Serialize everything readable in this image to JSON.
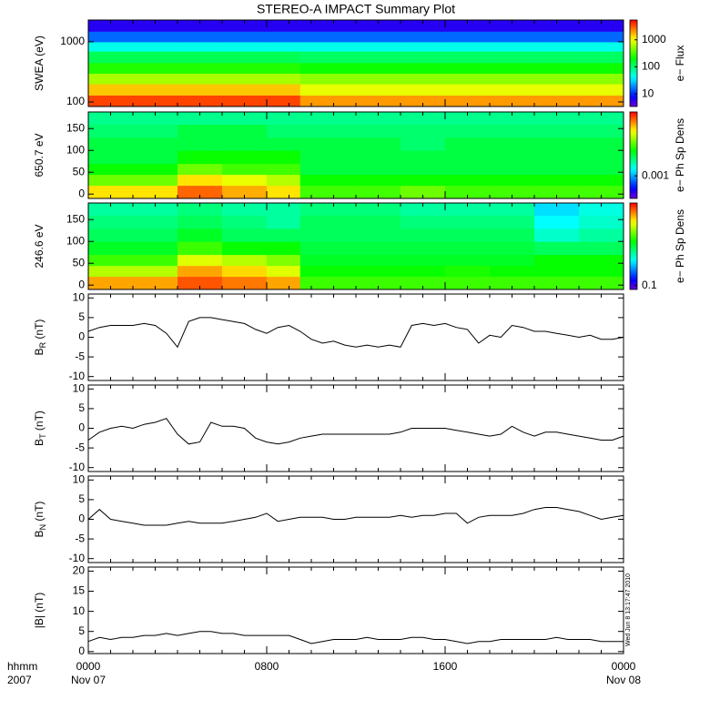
{
  "title": "STEREO-A IMPACT Summary Plot",
  "timestamp": "Wed Jun  8 13:17:47 2010",
  "x_axis": {
    "xlim": [
      0,
      24
    ],
    "xticks": [
      {
        "value": 0,
        "label": "0000"
      },
      {
        "value": 8,
        "label": "0800"
      },
      {
        "value": 16,
        "label": "1600"
      },
      {
        "value": 24,
        "label": "0000"
      }
    ],
    "xminor": [
      1,
      2,
      3,
      4,
      5,
      6,
      7,
      9,
      10,
      11,
      12,
      13,
      14,
      15,
      17,
      18,
      19,
      20,
      21,
      22,
      23
    ],
    "date_labels": [
      {
        "value": 0,
        "label": "Nov 07"
      },
      {
        "value": 24,
        "label": "Nov 08"
      }
    ],
    "unit_labels": [
      "hhmm",
      "2007"
    ]
  },
  "chart_data": [
    {
      "type": "heatmap",
      "ylabel": "SWEA (eV)",
      "ylog": true,
      "ylim": [
        84,
        2300
      ],
      "yticks": [
        100,
        1000
      ],
      "x_edges": [
        0,
        2,
        4,
        6,
        8,
        9.5,
        12,
        14,
        16,
        18,
        20,
        22,
        24
      ],
      "y_edges": [
        84,
        130,
        200,
        300,
        450,
        700,
        1000,
        1500,
        2300
      ],
      "z": [
        [
          3500,
          3500,
          3500,
          3500,
          3500,
          2000,
          2000,
          2000,
          2000,
          2000,
          2000,
          2000
        ],
        [
          1500,
          1500,
          1500,
          1500,
          1500,
          900,
          900,
          900,
          900,
          900,
          900,
          900
        ],
        [
          600,
          600,
          600,
          600,
          600,
          500,
          500,
          500,
          500,
          500,
          500,
          500
        ],
        [
          250,
          250,
          250,
          250,
          250,
          220,
          220,
          220,
          220,
          220,
          220,
          220
        ],
        [
          120,
          120,
          120,
          120,
          120,
          110,
          110,
          110,
          110,
          110,
          110,
          110
        ],
        [
          45,
          45,
          45,
          45,
          45,
          45,
          45,
          45,
          45,
          45,
          45,
          45
        ],
        [
          15,
          15,
          15,
          15,
          15,
          15,
          15,
          15,
          15,
          15,
          15,
          15
        ],
        [
          6,
          6,
          6,
          6,
          6,
          6,
          6,
          6,
          6,
          6,
          6,
          6
        ]
      ],
      "clabel": "e− Flux",
      "clog": true,
      "clim": [
        3.4,
        5400
      ],
      "cticks": [
        10,
        100,
        1000
      ]
    },
    {
      "type": "heatmap",
      "ylabel": "650.7 eV",
      "ylim": [
        -10,
        188
      ],
      "yticks": [
        0,
        50,
        100,
        150
      ],
      "x_edges": [
        0,
        2,
        4,
        6,
        8,
        9.5,
        12,
        14,
        16,
        18,
        20,
        22,
        24
      ],
      "y_edges": [
        -10,
        20,
        45,
        70,
        100,
        130,
        160,
        188
      ],
      "z": [
        [
          0.012,
          0.012,
          0.02,
          0.015,
          0.012,
          0.005,
          0.005,
          0.006,
          0.005,
          0.005,
          0.005,
          0.005
        ],
        [
          0.006,
          0.006,
          0.012,
          0.01,
          0.008,
          0.004,
          0.004,
          0.004,
          0.004,
          0.004,
          0.004,
          0.004
        ],
        [
          0.004,
          0.004,
          0.006,
          0.005,
          0.005,
          0.003,
          0.003,
          0.003,
          0.003,
          0.003,
          0.003,
          0.003
        ],
        [
          0.003,
          0.003,
          0.004,
          0.004,
          0.004,
          0.003,
          0.003,
          0.003,
          0.003,
          0.003,
          0.003,
          0.003
        ],
        [
          0.003,
          0.003,
          0.003,
          0.003,
          0.003,
          0.003,
          0.003,
          0.0025,
          0.003,
          0.003,
          0.003,
          0.003
        ],
        [
          0.0025,
          0.0025,
          0.003,
          0.003,
          0.0025,
          0.0025,
          0.0025,
          0.0025,
          0.0025,
          0.0025,
          0.0025,
          0.0025
        ],
        [
          0.0022,
          0.0022,
          0.0022,
          0.0022,
          0.0022,
          0.0022,
          0.0022,
          0.0022,
          0.0022,
          0.0022,
          0.0022,
          0.0022
        ]
      ],
      "clabel": "e− Ph Sp Dens",
      "clog": true,
      "clim": [
        0.0003,
        0.03
      ],
      "cticks": [
        0.001
      ]
    },
    {
      "type": "heatmap",
      "ylabel": "246.6 eV",
      "ylim": [
        -10,
        188
      ],
      "yticks": [
        0,
        50,
        100,
        150
      ],
      "x_edges": [
        0,
        2,
        4,
        6,
        8,
        9.5,
        12,
        14,
        16,
        18,
        20,
        22,
        24
      ],
      "y_edges": [
        -10,
        20,
        45,
        70,
        100,
        130,
        160,
        188
      ],
      "z": [
        [
          5,
          5,
          7,
          6,
          5,
          1.5,
          1.5,
          1.5,
          1.5,
          1.5,
          1.5,
          1.5
        ],
        [
          2.5,
          2.5,
          5,
          4,
          3,
          1.2,
          1.2,
          1.2,
          1.3,
          1.2,
          1.2,
          1.2
        ],
        [
          1.5,
          1.5,
          3,
          2.5,
          2,
          1,
          1,
          1,
          1,
          1,
          1.2,
          1.2
        ],
        [
          1,
          1,
          1.5,
          1.2,
          1.2,
          0.9,
          0.9,
          0.9,
          0.9,
          0.9,
          0.8,
          0.8
        ],
        [
          0.8,
          0.8,
          1,
          0.8,
          0.8,
          0.8,
          0.8,
          0.8,
          0.8,
          0.8,
          0.5,
          0.6
        ],
        [
          0.7,
          0.7,
          0.8,
          0.7,
          0.6,
          0.8,
          0.8,
          0.7,
          0.7,
          0.7,
          0.4,
          0.5
        ],
        [
          0.6,
          0.6,
          0.7,
          0.6,
          0.6,
          0.7,
          0.7,
          0.6,
          0.6,
          0.6,
          0.35,
          0.45
        ]
      ],
      "clabel": "e− Ph Sp Dens",
      "clog": true,
      "clim": [
        0.08,
        10
      ],
      "cticks": [
        0.1
      ]
    },
    {
      "type": "line",
      "ylabel": {
        "main": "B",
        "sub": "R",
        "rest": " (nT)"
      },
      "ylim": [
        -11,
        11
      ],
      "yticks": [
        -10,
        -5,
        0,
        5,
        10
      ],
      "x": [
        0,
        0.5,
        1,
        1.5,
        2,
        2.5,
        3,
        3.5,
        4,
        4.5,
        5,
        5.5,
        6,
        6.5,
        7,
        7.5,
        8,
        8.5,
        9,
        9.5,
        10,
        10.5,
        11,
        11.5,
        12,
        12.5,
        13,
        13.5,
        14,
        14.5,
        15,
        15.5,
        16,
        16.5,
        17,
        17.5,
        18,
        18.5,
        19,
        19.5,
        20,
        20.5,
        21,
        21.5,
        22,
        22.5,
        23,
        23.5,
        24
      ],
      "series": [
        {
          "color": "#000000",
          "values": [
            1.5,
            2.5,
            3,
            3,
            3,
            3.5,
            3,
            1,
            -2.5,
            4,
            5,
            5,
            4.5,
            4,
            3.5,
            2,
            1,
            2.5,
            3,
            1.5,
            -0.5,
            -1.5,
            -1,
            -2,
            -2.5,
            -2,
            -2.5,
            -2,
            -2.5,
            3,
            3.5,
            3,
            3.5,
            2.5,
            2,
            -1.5,
            0.5,
            0,
            3,
            2.5,
            1.5,
            1.5,
            1,
            0.5,
            0,
            0.5,
            -0.5,
            -0.5,
            0
          ]
        }
      ]
    },
    {
      "type": "line",
      "ylabel": {
        "main": "B",
        "sub": "T",
        "rest": " (nT)"
      },
      "ylim": [
        -11,
        11
      ],
      "yticks": [
        -10,
        -5,
        0,
        5,
        10
      ],
      "x": [
        0,
        0.5,
        1,
        1.5,
        2,
        2.5,
        3,
        3.5,
        4,
        4.5,
        5,
        5.5,
        6,
        6.5,
        7,
        7.5,
        8,
        8.5,
        9,
        9.5,
        10,
        10.5,
        11,
        11.5,
        12,
        12.5,
        13,
        13.5,
        14,
        14.5,
        15,
        15.5,
        16,
        16.5,
        17,
        17.5,
        18,
        18.5,
        19,
        19.5,
        20,
        20.5,
        21,
        21.5,
        22,
        22.5,
        23,
        23.5,
        24
      ],
      "series": [
        {
          "color": "#000000",
          "values": [
            -3,
            -1,
            0,
            0.5,
            0,
            1,
            1.5,
            2.5,
            -1.5,
            -4,
            -3.5,
            1.5,
            0.5,
            0.5,
            0,
            -2.5,
            -3.5,
            -4,
            -3.5,
            -2.5,
            -2,
            -1.5,
            -1.5,
            -1.5,
            -1.5,
            -1.5,
            -1.5,
            -1.5,
            -1,
            0,
            0,
            0,
            0,
            -0.5,
            -1,
            -1.5,
            -2,
            -1.5,
            0.5,
            -1,
            -2,
            -1,
            -1,
            -1.5,
            -2,
            -2.5,
            -3,
            -3,
            -2
          ]
        }
      ]
    },
    {
      "type": "line",
      "ylabel": {
        "main": "B",
        "sub": "N",
        "rest": " (nT)"
      },
      "ylim": [
        -11,
        11
      ],
      "yticks": [
        -10,
        -5,
        0,
        5,
        10
      ],
      "x": [
        0,
        0.5,
        1,
        1.5,
        2,
        2.5,
        3,
        3.5,
        4,
        4.5,
        5,
        5.5,
        6,
        6.5,
        7,
        7.5,
        8,
        8.5,
        9,
        9.5,
        10,
        10.5,
        11,
        11.5,
        12,
        12.5,
        13,
        13.5,
        14,
        14.5,
        15,
        15.5,
        16,
        16.5,
        17,
        17.5,
        18,
        18.5,
        19,
        19.5,
        20,
        20.5,
        21,
        21.5,
        22,
        22.5,
        23,
        23.5,
        24
      ],
      "series": [
        {
          "color": "#000000",
          "values": [
            0,
            2.5,
            0,
            -0.5,
            -1,
            -1.5,
            -1.5,
            -1.5,
            -1,
            -0.5,
            -1,
            -1,
            -1,
            -0.5,
            0,
            0.5,
            1.5,
            -0.5,
            0,
            0.5,
            0.5,
            0.5,
            0,
            0,
            0.5,
            0.5,
            0.5,
            0.5,
            1,
            0.5,
            1,
            1,
            1.5,
            1.5,
            -1,
            0.5,
            1,
            1,
            1,
            1.5,
            2.5,
            3,
            3,
            2.5,
            2,
            1,
            0,
            0.5,
            1
          ]
        }
      ]
    },
    {
      "type": "line",
      "ylabel": "|B| (nT)",
      "ylim": [
        -0.5,
        21
      ],
      "yticks": [
        0,
        5,
        10,
        15,
        20
      ],
      "x": [
        0,
        0.5,
        1,
        1.5,
        2,
        2.5,
        3,
        3.5,
        4,
        4.5,
        5,
        5.5,
        6,
        6.5,
        7,
        7.5,
        8,
        8.5,
        9,
        9.5,
        10,
        10.5,
        11,
        11.5,
        12,
        12.5,
        13,
        13.5,
        14,
        14.5,
        15,
        15.5,
        16,
        16.5,
        17,
        17.5,
        18,
        18.5,
        19,
        19.5,
        20,
        20.5,
        21,
        21.5,
        22,
        22.5,
        23,
        23.5,
        24
      ],
      "series": [
        {
          "color": "#000000",
          "values": [
            2.5,
            3.5,
            3,
            3.5,
            3.5,
            4,
            4,
            4.5,
            4,
            4.5,
            5,
            5,
            4.5,
            4.5,
            4,
            4,
            4,
            4,
            4,
            3,
            2,
            2.5,
            3,
            3,
            3,
            3.5,
            3,
            3,
            3,
            3.5,
            3.5,
            3,
            3,
            2.5,
            2,
            2.5,
            2.5,
            3,
            3,
            3,
            3,
            3,
            3.5,
            3,
            3,
            3,
            2.5,
            2.5,
            2.5
          ]
        }
      ]
    }
  ]
}
